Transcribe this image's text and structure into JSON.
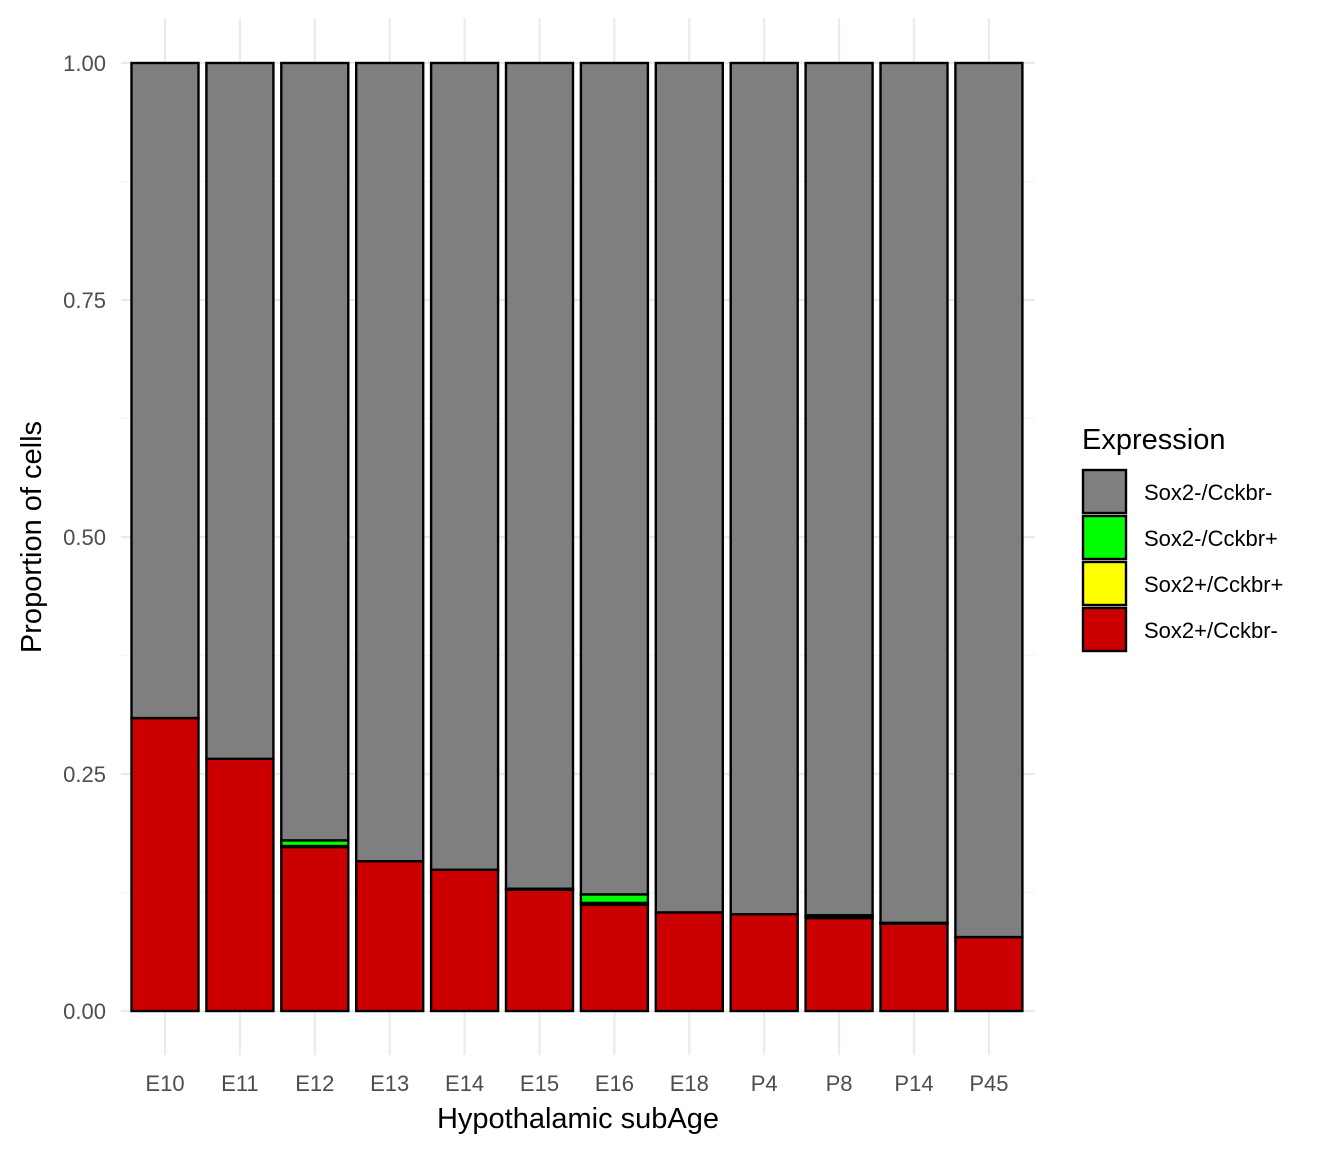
{
  "chart_data": {
    "type": "bar",
    "stacked": true,
    "title": "",
    "xlabel": "Hypothalamic subAge",
    "ylabel": "Proportion of cells",
    "ylim": [
      0,
      1
    ],
    "yticks": [
      "0.00",
      "0.25",
      "0.50",
      "0.75",
      "1.00"
    ],
    "ytick_values": [
      0,
      0.25,
      0.5,
      0.75,
      1.0
    ],
    "categories": [
      "E10",
      "E11",
      "E12",
      "E13",
      "E14",
      "E15",
      "E16",
      "E18",
      "P4",
      "P8",
      "P14",
      "P45"
    ],
    "series": [
      {
        "name": "Sox2+/Cckbr-",
        "color": "#cc0000",
        "values": [
          0.309,
          0.266,
          0.173,
          0.158,
          0.149,
          0.128,
          0.112,
          0.104,
          0.102,
          0.098,
          0.092,
          0.078
        ]
      },
      {
        "name": "Sox2+/Cckbr+",
        "color": "#ffff00",
        "values": [
          0.0,
          0.0,
          0.001,
          0.0,
          0.0,
          0.0,
          0.002,
          0.0,
          0.0,
          0.001,
          0.0,
          0.0
        ]
      },
      {
        "name": "Sox2-/Cckbr+",
        "color": "#00ff00",
        "values": [
          0.0,
          0.0,
          0.006,
          0.0,
          0.0,
          0.001,
          0.009,
          0.0,
          0.0,
          0.002,
          0.001,
          0.0
        ]
      },
      {
        "name": "Sox2-/Cckbr-",
        "color": "#7f7f7f",
        "values": [
          0.691,
          0.734,
          0.82,
          0.842,
          0.851,
          0.871,
          0.877,
          0.896,
          0.898,
          0.899,
          0.907,
          0.922
        ]
      }
    ],
    "legend": {
      "title": "Expression",
      "position": "right",
      "items": [
        {
          "label": "Sox2-/Cckbr-",
          "color": "#7f7f7f"
        },
        {
          "label": "Sox2-/Cckbr+",
          "color": "#00ff00"
        },
        {
          "label": "Sox2+/Cckbr+",
          "color": "#ffff00"
        },
        {
          "label": "Sox2+/Cckbr-",
          "color": "#cc0000"
        }
      ]
    },
    "grid": true
  }
}
